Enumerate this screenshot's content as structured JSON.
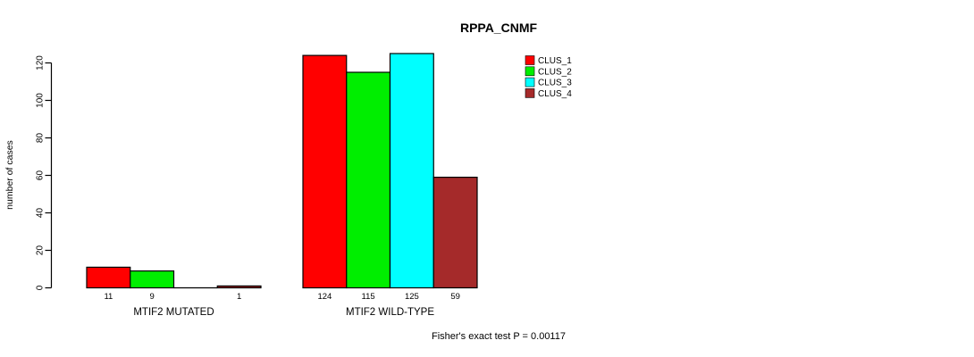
{
  "chart_data": {
    "type": "bar",
    "title": "RPPA_CNMF",
    "ylabel": "number of cases",
    "xlabel": "",
    "ylim": [
      0,
      120
    ],
    "yticks": [
      0,
      20,
      40,
      60,
      80,
      100,
      120
    ],
    "grid": false,
    "legend_position": "top-right",
    "categories": [
      "MTIF2 MUTATED",
      "MTIF2 WILD-TYPE"
    ],
    "series": [
      {
        "name": "CLUS_1",
        "color": "#ff0000",
        "values": [
          11,
          124
        ]
      },
      {
        "name": "CLUS_2",
        "color": "#00ee00",
        "values": [
          9,
          115
        ]
      },
      {
        "name": "CLUS_3",
        "color": "#00ffff",
        "values": [
          0,
          125
        ]
      },
      {
        "name": "CLUS_4",
        "color": "#a52a2a",
        "values": [
          1,
          59
        ]
      }
    ],
    "bar_value_labels": [
      [
        "11",
        "9",
        "",
        "1"
      ],
      [
        "124",
        "115",
        "125",
        "59"
      ]
    ],
    "annotation": "Fisher's exact test P = 0.00117"
  }
}
